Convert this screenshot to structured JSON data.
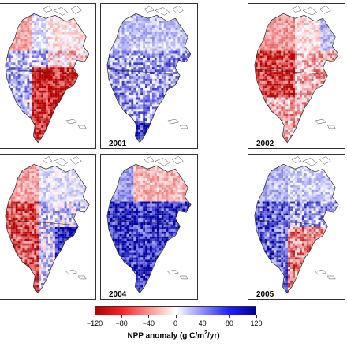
{
  "panels": [
    {
      "year": "",
      "pattern": "red-east"
    },
    {
      "year": "2001",
      "pattern": "blue-mix"
    },
    {
      "year": "2002",
      "pattern": "red-west"
    },
    {
      "year": "",
      "pattern": "red-west-blue-east"
    },
    {
      "year": "2004",
      "pattern": "blue-strong"
    },
    {
      "year": "2005",
      "pattern": "mixed"
    }
  ],
  "colorbar": {
    "ticks": [
      "−120",
      "−80",
      "−40",
      "0",
      "40",
      "80",
      "120"
    ],
    "label_main": "NPP anomaly (g C/m",
    "label_sup": "2",
    "label_end": "/yr)",
    "colors": [
      "#b40000",
      "#ff2020",
      "#ff9090",
      "#ffffff",
      "#9090ff",
      "#2020ff",
      "#0000a0"
    ]
  }
}
